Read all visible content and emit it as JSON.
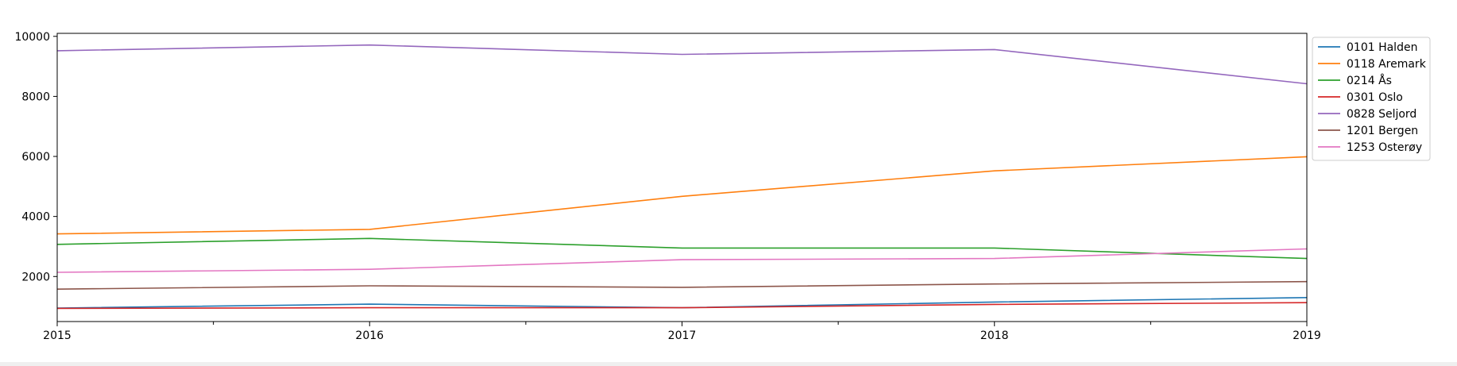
{
  "chart_data": {
    "type": "line",
    "title": "",
    "xlabel": "",
    "ylabel": "",
    "x": [
      2015,
      2016,
      2017,
      2018,
      2019
    ],
    "x_ticks": [
      "2015",
      "2016",
      "2017",
      "2018",
      "2019"
    ],
    "xlim": [
      2015,
      2019
    ],
    "ylim": [
      500,
      10100
    ],
    "y_ticks": [
      "2000",
      "4000",
      "6000",
      "8000",
      "10000"
    ],
    "grid": false,
    "legend_position": "right",
    "series": [
      {
        "name": "0101 Halden",
        "color": "#1f77b4",
        "values": [
          950,
          1080,
          960,
          1150,
          1300
        ]
      },
      {
        "name": "0118 Aremark",
        "color": "#ff7f0e",
        "values": [
          3420,
          3570,
          4670,
          5520,
          5990
        ]
      },
      {
        "name": "0214 Ås",
        "color": "#2ca02c",
        "values": [
          3070,
          3270,
          2950,
          2950,
          2600
        ]
      },
      {
        "name": "0301 Oslo",
        "color": "#d62728",
        "values": [
          940,
          960,
          960,
          1070,
          1130
        ]
      },
      {
        "name": "0828 Seljord",
        "color": "#9467bd",
        "values": [
          9520,
          9710,
          9400,
          9560,
          8420
        ]
      },
      {
        "name": "1201 Bergen",
        "color": "#8c564b",
        "values": [
          1580,
          1690,
          1640,
          1750,
          1830
        ]
      },
      {
        "name": "1253 Osterøy",
        "color": "#e377c2",
        "values": [
          2140,
          2240,
          2560,
          2600,
          2920
        ]
      }
    ]
  }
}
